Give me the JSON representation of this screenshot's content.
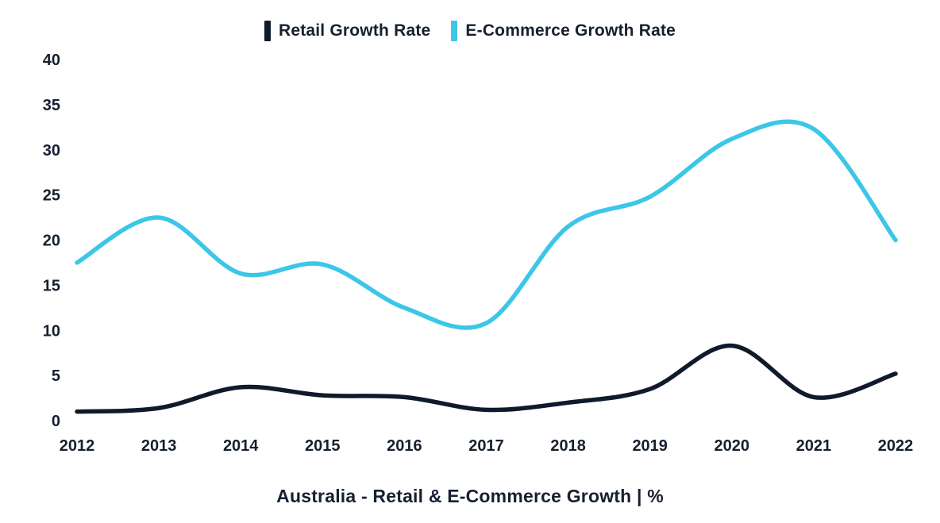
{
  "chart_data": {
    "type": "line",
    "title": "Australia - Retail & E-Commerce Growth | %",
    "x": [
      2012,
      2013,
      2014,
      2015,
      2016,
      2017,
      2018,
      2019,
      2020,
      2021,
      2022
    ],
    "series": [
      {
        "name": "Retail Growth Rate",
        "color": "#0f1b2b",
        "values": [
          1.0,
          1.4,
          3.7,
          2.8,
          2.6,
          1.2,
          2.0,
          3.5,
          8.3,
          2.6,
          5.2
        ]
      },
      {
        "name": "E-Commerce Growth Rate",
        "color": "#3cc6e8",
        "values": [
          17.5,
          22.5,
          16.3,
          17.3,
          12.5,
          10.8,
          21.5,
          24.8,
          31.2,
          32.3,
          20.0
        ]
      }
    ],
    "ylim": [
      0,
      40
    ],
    "yticks": [
      0,
      5,
      10,
      15,
      20,
      25,
      30,
      35,
      40
    ],
    "grid": false,
    "legend_position": "top",
    "axis_lines": false
  }
}
